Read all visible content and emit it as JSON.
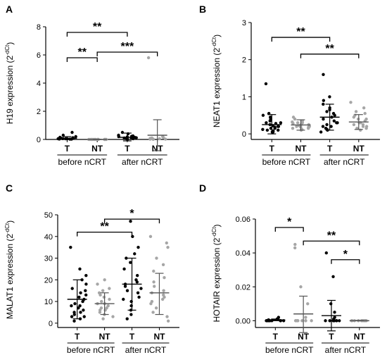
{
  "figure": {
    "colors": {
      "tumor": "#000000",
      "nontumor": "#a6a6a6",
      "axis": "#000000"
    }
  },
  "chart_data": [
    {
      "panel": "A",
      "type": "scatter",
      "ylabel_main": "H19 expression (2",
      "ylabel_sup": "-dCt",
      "ylabel_end": ")",
      "ylim": [
        0,
        8
      ],
      "yticks": [
        0,
        2,
        4,
        6,
        8
      ],
      "ytick_labels": [
        "0",
        "2",
        "4",
        "6",
        "8"
      ],
      "categories": [
        "T",
        "NT",
        "T",
        "NT"
      ],
      "groups": [
        "before nCRT",
        "after nCRT"
      ],
      "stats": [
        {
          "mean": 0.08,
          "sd_low": 0.0,
          "sd_high": 0.2
        },
        {
          "mean": 0.0,
          "sd_low": 0.0,
          "sd_high": 0.02
        },
        {
          "mean": 0.15,
          "sd_low": -0.1,
          "sd_high": 0.45
        },
        {
          "mean": 0.3,
          "sd_low": -0.8,
          "sd_high": 1.4
        }
      ],
      "points": [
        [
          0.02,
          0.03,
          0.05,
          0.08,
          0.1,
          0.12,
          0.15,
          0.2,
          0.3,
          0.5,
          0.05,
          0.06,
          0.02,
          0.04
        ],
        [
          0,
          0,
          0,
          0,
          0,
          0,
          0,
          0,
          0,
          0,
          0,
          0,
          0,
          0
        ],
        [
          0.05,
          0.1,
          0.15,
          0.2,
          0.25,
          0.3,
          0.4,
          0.5,
          0.02,
          0.05,
          0.08,
          0.12,
          0.18,
          0.22
        ],
        [
          0.01,
          0.02,
          0.05,
          0.08,
          0.1,
          0.15,
          0.2,
          5.8,
          0.02,
          0.03
        ]
      ],
      "brackets": [
        {
          "from": 0,
          "to": 2,
          "level": 7.6,
          "label": "**"
        },
        {
          "from": 0,
          "to": 1,
          "level": 5.8,
          "label": "**"
        },
        {
          "from": 1,
          "to": 3,
          "level": 6.2,
          "label": "***"
        }
      ]
    },
    {
      "panel": "B",
      "type": "scatter",
      "ylabel_main": "NEAT1 expression (2",
      "ylabel_sup": "-dCt",
      "ylabel_end": ")",
      "ylim": [
        -0.15,
        3
      ],
      "yticks": [
        0,
        1,
        2,
        3
      ],
      "ytick_labels": [
        "0",
        "1",
        "2",
        "3"
      ],
      "categories": [
        "T",
        "NT",
        "T",
        "NT"
      ],
      "groups": [
        "before nCRT",
        "after nCRT"
      ],
      "stats": [
        {
          "mean": 0.25,
          "sd_low": 0.0,
          "sd_high": 0.52
        },
        {
          "mean": 0.24,
          "sd_low": 0.1,
          "sd_high": 0.38
        },
        {
          "mean": 0.45,
          "sd_low": 0.1,
          "sd_high": 0.8
        },
        {
          "mean": 0.32,
          "sd_low": 0.12,
          "sd_high": 0.52
        }
      ],
      "points": [
        [
          0.05,
          0.08,
          0.1,
          0.12,
          0.15,
          0.18,
          0.2,
          0.22,
          0.25,
          0.28,
          0.3,
          0.35,
          0.4,
          0.45,
          0.5,
          0.55,
          1.35,
          0.15,
          0.2,
          0.1,
          0.05,
          0.3
        ],
        [
          0.1,
          0.12,
          0.15,
          0.18,
          0.2,
          0.22,
          0.25,
          0.28,
          0.3,
          0.32,
          0.35,
          0.4,
          0.45,
          0.2,
          0.25,
          0.15,
          0.3,
          0.18
        ],
        [
          0.05,
          0.1,
          0.15,
          0.2,
          0.3,
          0.35,
          0.4,
          0.45,
          0.5,
          0.6,
          0.7,
          0.8,
          0.9,
          1.0,
          1.6,
          0.25,
          0.3,
          0.55,
          0.65,
          0.2,
          0.12
        ],
        [
          0.1,
          0.15,
          0.2,
          0.25,
          0.3,
          0.35,
          0.4,
          0.45,
          0.5,
          0.55,
          0.6,
          0.7,
          0.85,
          0.2,
          0.3,
          0.25,
          0.4,
          0.15
        ]
      ],
      "brackets": [
        {
          "from": 0,
          "to": 2,
          "level": 2.6,
          "label": "**"
        },
        {
          "from": 1,
          "to": 3,
          "level": 2.15,
          "label": "**"
        }
      ]
    },
    {
      "panel": "C",
      "type": "scatter",
      "ylabel_main": "MALAT1 expression (2",
      "ylabel_sup": "-dCt",
      "ylabel_end": ")",
      "ylim": [
        -2,
        50
      ],
      "yticks": [
        0,
        10,
        20,
        30,
        40,
        50
      ],
      "ytick_labels": [
        "0",
        "10",
        "20",
        "30",
        "40",
        "50"
      ],
      "categories": [
        "T",
        "NT",
        "T",
        "NT"
      ],
      "groups": [
        "before nCRT",
        "after nCRT"
      ],
      "stats": [
        {
          "mean": 11.0,
          "sd_low": 2.0,
          "sd_high": 20.0
        },
        {
          "mean": 9.0,
          "sd_low": 4.0,
          "sd_high": 14.0
        },
        {
          "mean": 18.0,
          "sd_low": 6.0,
          "sd_high": 30.0
        },
        {
          "mean": 14.0,
          "sd_low": 4.0,
          "sd_high": 23.0
        }
      ],
      "points": [
        [
          1,
          2,
          3,
          4,
          5,
          6,
          7,
          8,
          9,
          10,
          11,
          12,
          13,
          14,
          15,
          16,
          18,
          20,
          22,
          25,
          35,
          5,
          8,
          3
        ],
        [
          2,
          3,
          4,
          5,
          6,
          7,
          8,
          9,
          10,
          11,
          12,
          13,
          14,
          15,
          16,
          18,
          20,
          9,
          7,
          6
        ],
        [
          2,
          4,
          6,
          8,
          10,
          12,
          14,
          16,
          18,
          20,
          22,
          25,
          28,
          30,
          32,
          35,
          40,
          47,
          15,
          17,
          19,
          11
        ],
        [
          1,
          3,
          5,
          7,
          9,
          11,
          13,
          15,
          17,
          19,
          21,
          24,
          27,
          30,
          35,
          37,
          40,
          14,
          12,
          10
        ]
      ],
      "brackets": [
        {
          "from": 0,
          "to": 2,
          "level": 42,
          "label": "**"
        },
        {
          "from": 1,
          "to": 3,
          "level": 48,
          "label": "*"
        }
      ]
    },
    {
      "panel": "D",
      "type": "scatter",
      "ylabel_main": "HOTAIR expression (2",
      "ylabel_sup": "-dCt",
      "ylabel_end": ")",
      "ylim": [
        -0.004,
        0.06
      ],
      "yticks": [
        0.0,
        0.02,
        0.04,
        0.06
      ],
      "ytick_labels": [
        "0.00",
        "0.02",
        "0.04",
        "0.06"
      ],
      "categories": [
        "T",
        "NT",
        "T",
        "NT"
      ],
      "groups": [
        "before nCRT",
        "after nCRT"
      ],
      "stats": [
        {
          "mean": 0.0005,
          "sd_low": 0.0,
          "sd_high": 0.001
        },
        {
          "mean": 0.004,
          "sd_low": -0.007,
          "sd_high": 0.0145
        },
        {
          "mean": 0.003,
          "sd_low": -0.006,
          "sd_high": 0.012
        },
        {
          "mean": 0.0,
          "sd_low": 0.0,
          "sd_high": 0.0002
        }
      ],
      "points": [
        [
          0.0,
          0.0,
          0.0,
          0.0,
          0.0,
          0.0,
          0.0,
          0.001,
          0.002,
          0.0,
          0.0,
          0.0005
        ],
        [
          0.0,
          0.0,
          0.0,
          0.0,
          0.0,
          0.0,
          0.0,
          0.0,
          0.01,
          0.02,
          0.045,
          0.043,
          0.002,
          0.0
        ],
        [
          0.0,
          0.0,
          0.0,
          0.0,
          0.0,
          0.0,
          0.001,
          0.005,
          0.01,
          0.026,
          0.04,
          0.002,
          0.0,
          0.0
        ],
        [
          0.0,
          0.0,
          0.0,
          0.0,
          0.0,
          0.0,
          0.0,
          0.0,
          0.0,
          0.0
        ]
      ],
      "brackets": [
        {
          "from": 0,
          "to": 1,
          "level": 0.055,
          "label": "*"
        },
        {
          "from": 1,
          "to": 3,
          "level": 0.047,
          "label": "**"
        },
        {
          "from": 2,
          "to": 3,
          "level": 0.036,
          "label": "*"
        }
      ]
    }
  ]
}
